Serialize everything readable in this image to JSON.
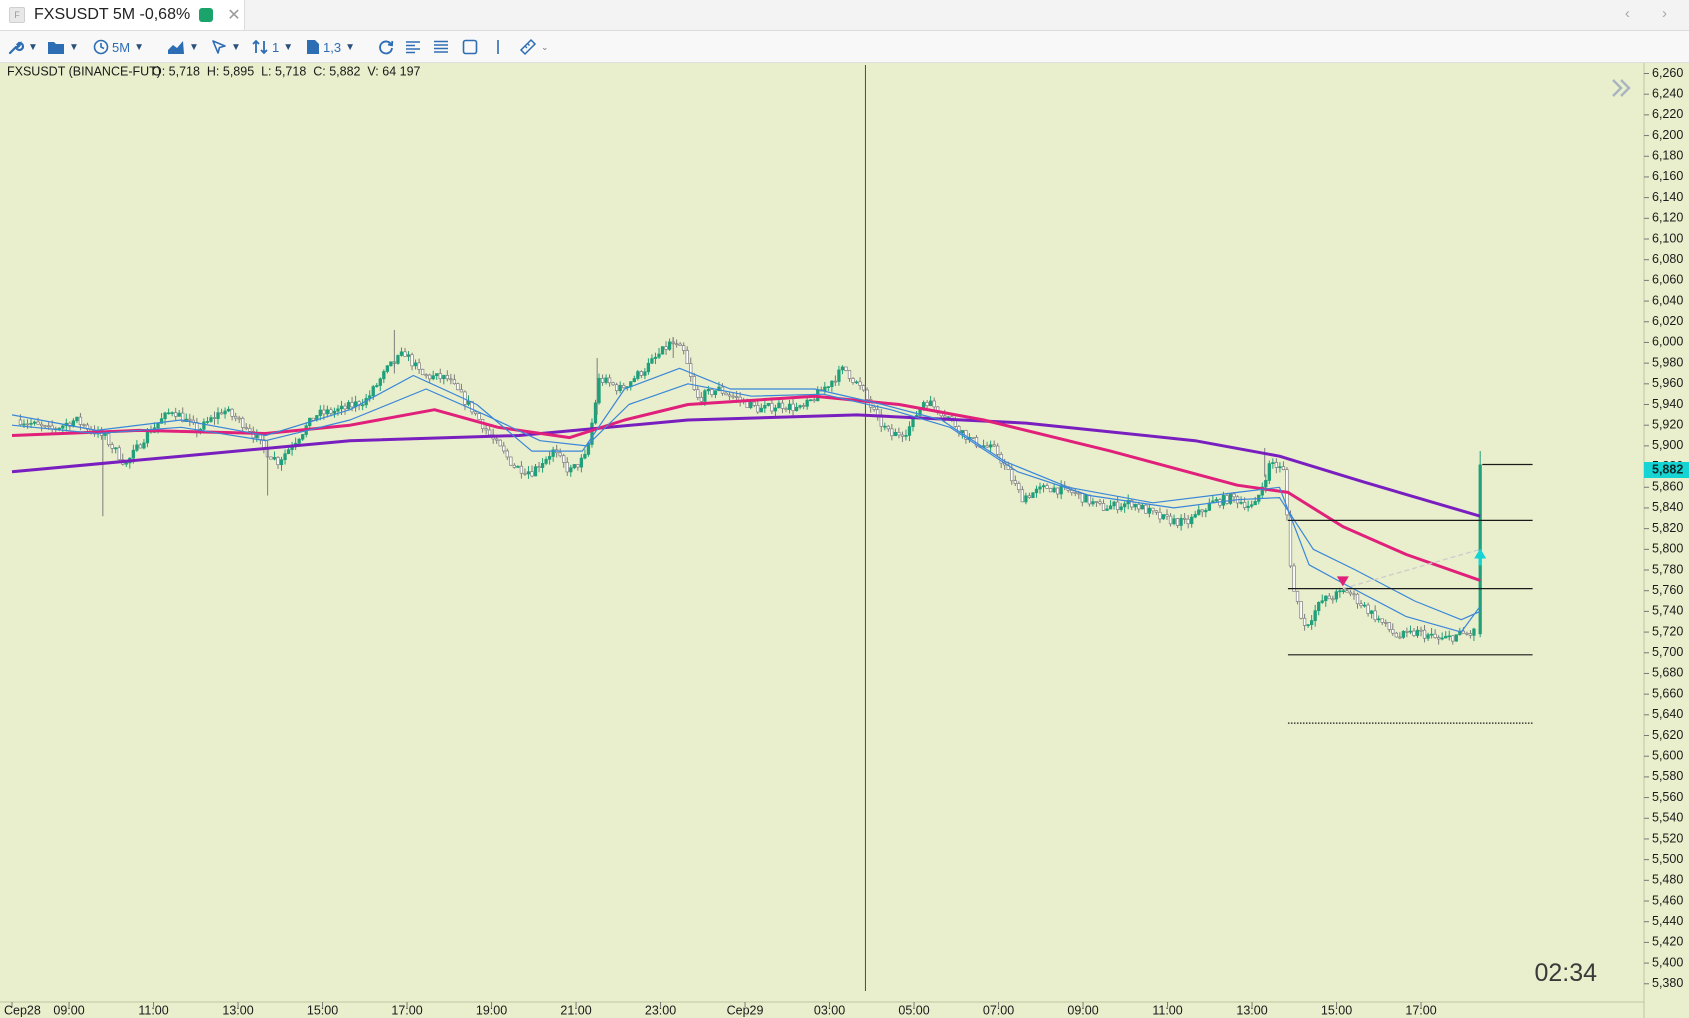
{
  "tab": {
    "app_icon": "F",
    "title": "FXSUSDT 5M -0,68%",
    "status_color": "#1aa36b",
    "close_glyph": "✕",
    "nav_glyph": "‹ ›"
  },
  "toolbar": {
    "timeframe_label": "5M",
    "bar_count_label": "1",
    "scale_label": "1,3"
  },
  "chart_data": {
    "type": "candlestick",
    "symbol_info": "FXSUSDT (BINANCE-FUT)",
    "ohlcv_label": "O: 5,718  H: 5,895  L: 5,718  C: 5,882  V: 64 197",
    "current_price": "5,882",
    "current_price_value": 5.882,
    "timer": "02:34",
    "ylim": [
      5.36,
      6.27
    ],
    "y_ticks": [
      6.26,
      6.24,
      6.22,
      6.2,
      6.18,
      6.16,
      6.14,
      6.12,
      6.1,
      6.08,
      6.06,
      6.04,
      6.02,
      6.0,
      5.98,
      5.96,
      5.94,
      5.92,
      5.9,
      5.88,
      5.86,
      5.84,
      5.82,
      5.8,
      5.78,
      5.76,
      5.74,
      5.72,
      5.7,
      5.68,
      5.66,
      5.64,
      5.62,
      5.6,
      5.58,
      5.56,
      5.54,
      5.52,
      5.5,
      5.48,
      5.46,
      5.44,
      5.42,
      5.4,
      5.38
    ],
    "x_ticks": [
      {
        "label": "Cep28",
        "t": 0
      },
      {
        "label": "09:00",
        "t": 1.35
      },
      {
        "label": "11:00",
        "t": 3.35
      },
      {
        "label": "13:00",
        "t": 5.35
      },
      {
        "label": "15:00",
        "t": 7.35
      },
      {
        "label": "17:00",
        "t": 9.35
      },
      {
        "label": "19:00",
        "t": 11.35
      },
      {
        "label": "21:00",
        "t": 13.35
      },
      {
        "label": "23:00",
        "t": 15.35
      },
      {
        "label": "Cep29",
        "t": 17.35
      },
      {
        "label": "03:00",
        "t": 19.35
      },
      {
        "label": "05:00",
        "t": 21.35
      },
      {
        "label": "07:00",
        "t": 23.35
      },
      {
        "label": "09:00",
        "t": 25.35
      },
      {
        "label": "11:00",
        "t": 27.35
      },
      {
        "label": "13:00",
        "t": 29.35
      },
      {
        "label": "15:00",
        "t": 31.35
      },
      {
        "label": "17:00",
        "t": 33.35
      }
    ],
    "price_path": [
      [
        0.2,
        5.925
      ],
      [
        0.9,
        5.915
      ],
      [
        1.5,
        5.925
      ],
      [
        2.2,
        5.908
      ],
      [
        2.7,
        5.882
      ],
      [
        3.2,
        5.912
      ],
      [
        3.8,
        5.935
      ],
      [
        4.4,
        5.915
      ],
      [
        5.0,
        5.935
      ],
      [
        5.6,
        5.918
      ],
      [
        6.0,
        5.895
      ],
      [
        6.3,
        5.885
      ],
      [
        6.7,
        5.905
      ],
      [
        7.2,
        5.93
      ],
      [
        7.8,
        5.935
      ],
      [
        8.4,
        5.945
      ],
      [
        8.9,
        5.975
      ],
      [
        9.3,
        5.99
      ],
      [
        9.7,
        5.968
      ],
      [
        10.3,
        5.965
      ],
      [
        10.9,
        5.935
      ],
      [
        11.4,
        5.905
      ],
      [
        11.9,
        5.88
      ],
      [
        12.3,
        5.875
      ],
      [
        12.8,
        5.895
      ],
      [
        13.2,
        5.875
      ],
      [
        13.6,
        5.89
      ],
      [
        13.9,
        5.965
      ],
      [
        14.4,
        5.955
      ],
      [
        15.0,
        5.975
      ],
      [
        15.6,
        6.0
      ],
      [
        15.9,
        5.99
      ],
      [
        16.2,
        5.945
      ],
      [
        16.7,
        5.955
      ],
      [
        17.2,
        5.945
      ],
      [
        17.7,
        5.935
      ],
      [
        18.2,
        5.94
      ],
      [
        18.7,
        5.935
      ],
      [
        19.2,
        5.955
      ],
      [
        19.7,
        5.975
      ],
      [
        20.1,
        5.955
      ],
      [
        20.5,
        5.925
      ],
      [
        20.8,
        5.91
      ],
      [
        21.2,
        5.915
      ],
      [
        21.6,
        5.945
      ],
      [
        22.1,
        5.93
      ],
      [
        22.7,
        5.905
      ],
      [
        23.3,
        5.895
      ],
      [
        23.9,
        5.85
      ],
      [
        24.5,
        5.86
      ],
      [
        25.1,
        5.855
      ],
      [
        25.8,
        5.84
      ],
      [
        26.5,
        5.845
      ],
      [
        27.2,
        5.83
      ],
      [
        27.8,
        5.825
      ],
      [
        28.4,
        5.845
      ],
      [
        28.9,
        5.85
      ],
      [
        29.4,
        5.84
      ],
      [
        29.8,
        5.885
      ],
      [
        30.1,
        5.875
      ],
      [
        30.3,
        5.765
      ],
      [
        30.6,
        5.725
      ],
      [
        31.0,
        5.75
      ],
      [
        31.6,
        5.76
      ],
      [
        32.0,
        5.745
      ],
      [
        32.4,
        5.73
      ],
      [
        32.8,
        5.715
      ],
      [
        33.3,
        5.72
      ],
      [
        33.8,
        5.712
      ],
      [
        34.3,
        5.718
      ],
      [
        34.6,
        5.718
      ],
      [
        34.75,
        5.882
      ]
    ],
    "series": [
      {
        "color": "#7a1fbf",
        "width": 3,
        "points": [
          [
            0,
            5.875
          ],
          [
            4,
            5.89
          ],
          [
            8,
            5.905
          ],
          [
            12,
            5.91
          ],
          [
            16,
            5.925
          ],
          [
            20,
            5.93
          ],
          [
            24,
            5.922
          ],
          [
            28,
            5.905
          ],
          [
            30,
            5.89
          ],
          [
            32,
            5.865
          ],
          [
            34.75,
            5.832
          ]
        ]
      },
      {
        "color": "#e0207a",
        "width": 3,
        "points": [
          [
            0,
            5.91
          ],
          [
            3,
            5.915
          ],
          [
            6,
            5.912
          ],
          [
            8,
            5.92
          ],
          [
            10,
            5.935
          ],
          [
            11.5,
            5.918
          ],
          [
            13.2,
            5.908
          ],
          [
            14.5,
            5.925
          ],
          [
            16,
            5.94
          ],
          [
            19,
            5.948
          ],
          [
            21,
            5.94
          ],
          [
            23,
            5.925
          ],
          [
            26,
            5.895
          ],
          [
            29,
            5.862
          ],
          [
            30.2,
            5.855
          ],
          [
            31.5,
            5.822
          ],
          [
            33,
            5.795
          ],
          [
            34.75,
            5.77
          ]
        ]
      },
      {
        "color": "#3a86d9",
        "width": 1.2,
        "points": [
          [
            0,
            5.93
          ],
          [
            2,
            5.915
          ],
          [
            4,
            5.925
          ],
          [
            6,
            5.91
          ],
          [
            8,
            5.935
          ],
          [
            9.5,
            5.968
          ],
          [
            11,
            5.94
          ],
          [
            12.3,
            5.895
          ],
          [
            13.5,
            5.895
          ],
          [
            14.5,
            5.955
          ],
          [
            15.8,
            5.975
          ],
          [
            17,
            5.955
          ],
          [
            19,
            5.955
          ],
          [
            20.6,
            5.94
          ],
          [
            22,
            5.925
          ],
          [
            23.5,
            5.885
          ],
          [
            25,
            5.86
          ],
          [
            27,
            5.845
          ],
          [
            29,
            5.855
          ],
          [
            30,
            5.86
          ],
          [
            30.7,
            5.785
          ],
          [
            31.6,
            5.765
          ],
          [
            33,
            5.735
          ],
          [
            34.3,
            5.72
          ],
          [
            34.75,
            5.745
          ]
        ]
      },
      {
        "color": "#3a86d9",
        "width": 1.2,
        "points": [
          [
            0,
            5.92
          ],
          [
            2,
            5.912
          ],
          [
            4,
            5.918
          ],
          [
            6,
            5.905
          ],
          [
            8,
            5.925
          ],
          [
            9.8,
            5.955
          ],
          [
            11.2,
            5.93
          ],
          [
            12.5,
            5.905
          ],
          [
            13.6,
            5.9
          ],
          [
            14.6,
            5.94
          ],
          [
            16,
            5.96
          ],
          [
            17.5,
            5.948
          ],
          [
            19.2,
            5.95
          ],
          [
            20.8,
            5.935
          ],
          [
            22.2,
            5.918
          ],
          [
            23.8,
            5.875
          ],
          [
            25.5,
            5.852
          ],
          [
            27.5,
            5.84
          ],
          [
            29,
            5.848
          ],
          [
            30,
            5.85
          ],
          [
            30.8,
            5.8
          ],
          [
            31.8,
            5.78
          ],
          [
            33.2,
            5.75
          ],
          [
            34.3,
            5.732
          ],
          [
            34.75,
            5.74
          ]
        ]
      }
    ],
    "horizontal_levels": [
      {
        "price": 5.882,
        "from": 34.8,
        "to": 35.99,
        "style": "solid"
      },
      {
        "price": 5.828,
        "from": 30.2,
        "to": 35.99,
        "style": "solid"
      },
      {
        "price": 5.762,
        "from": 30.2,
        "to": 35.99,
        "style": "solid"
      },
      {
        "price": 5.698,
        "from": 30.2,
        "to": 35.99,
        "style": "solid"
      },
      {
        "price": 5.632,
        "from": 30.2,
        "to": 35.99,
        "style": "dotted"
      }
    ],
    "vertical_marker_t": 20.2,
    "markers": [
      {
        "type": "sell",
        "t": 31.5,
        "price": 5.768,
        "color": "#e0207a"
      },
      {
        "type": "buy",
        "t": 34.75,
        "price": 5.795,
        "color": "#14d4d4"
      }
    ],
    "trade_line": {
      "from": [
        31.5,
        5.762
      ],
      "to": [
        34.75,
        5.8
      ],
      "color": "#cccccc"
    }
  }
}
